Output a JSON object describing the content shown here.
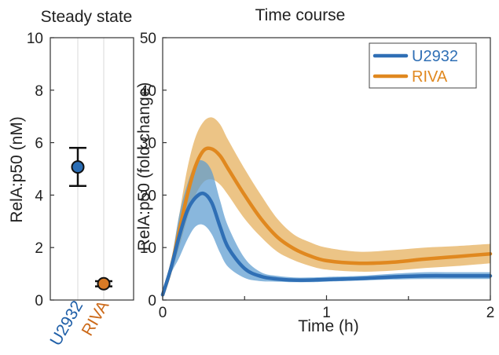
{
  "chart_data": [
    {
      "type": "scatter",
      "title": "Steady state",
      "ylabel": "RelA:p50 (nM)",
      "ylim": [
        0,
        10
      ],
      "yticks": [
        "0",
        "2",
        "4",
        "6",
        "8",
        "10"
      ],
      "categories": [
        "U2932",
        "RIVA"
      ],
      "category_colors": [
        "#1f5fa8",
        "#cc6a1a"
      ],
      "points": [
        {
          "name": "U2932",
          "mean": 5.07,
          "err_low": 4.35,
          "err_high": 5.8,
          "color": "#2a6db5"
        },
        {
          "name": "RIVA",
          "mean": 0.62,
          "err_low": 0.52,
          "err_high": 0.72,
          "color": "#d77a26"
        }
      ],
      "grid": true
    },
    {
      "type": "line",
      "title": "Time course",
      "xlabel": "Time (h)",
      "ylabel": "RelA:p50 (fold change)",
      "xlim": [
        0,
        2
      ],
      "ylim": [
        0,
        50
      ],
      "xticks": [
        "0",
        "1",
        "2"
      ],
      "yticks": [
        "0",
        "10",
        "20",
        "30",
        "40",
        "50"
      ],
      "legend_position": "top-right",
      "series": [
        {
          "name": "U2932",
          "color": "#2f6fb5",
          "band_color": "#5b9bd0",
          "x": [
            0,
            0.05,
            0.1,
            0.15,
            0.2,
            0.25,
            0.3,
            0.35,
            0.4,
            0.5,
            0.6,
            0.7,
            0.8,
            0.9,
            1.0,
            1.2,
            1.4,
            1.6,
            1.8,
            2.0
          ],
          "mean": [
            1,
            6,
            12,
            17,
            19.5,
            20.3,
            18.5,
            14,
            10,
            6,
            4.5,
            4,
            3.8,
            3.8,
            3.9,
            4.1,
            4.4,
            4.6,
            4.6,
            4.6
          ],
          "lower": [
            1,
            5,
            8,
            11.5,
            14,
            14.3,
            12.5,
            9,
            6.3,
            4.2,
            3.6,
            3.5,
            3.4,
            3.4,
            3.5,
            3.7,
            3.9,
            4.0,
            4.0,
            4.0
          ],
          "upper": [
            1,
            7,
            16,
            22,
            26,
            26.5,
            24.5,
            19,
            14,
            8,
            5.3,
            4.6,
            4.3,
            4.3,
            4.4,
            4.6,
            5.0,
            5.3,
            5.3,
            5.3
          ]
        },
        {
          "name": "RIVA",
          "color": "#e0881f",
          "band_color": "#e5ad58",
          "x": [
            0,
            0.05,
            0.1,
            0.15,
            0.2,
            0.25,
            0.3,
            0.35,
            0.4,
            0.5,
            0.6,
            0.7,
            0.8,
            0.9,
            1.0,
            1.2,
            1.4,
            1.6,
            1.8,
            2.0
          ],
          "mean": [
            1,
            6,
            13,
            20,
            25.5,
            28.5,
            28.8,
            27.5,
            25,
            20,
            15.5,
            12,
            9.8,
            8.4,
            7.5,
            7,
            7.2,
            7.8,
            8.3,
            8.8
          ],
          "lower": [
            1,
            5,
            10,
            15.5,
            20,
            22.5,
            23,
            22,
            20,
            15.5,
            12,
            9.2,
            7.6,
            6.5,
            5.8,
            5.4,
            5.6,
            6.1,
            6.5,
            7.0
          ],
          "upper": [
            1,
            7,
            16,
            25,
            31,
            34,
            34.8,
            33.5,
            30.5,
            25,
            20,
            15.5,
            12.5,
            11,
            10,
            9.2,
            9.5,
            10.0,
            10.3,
            10.7
          ]
        }
      ]
    }
  ]
}
